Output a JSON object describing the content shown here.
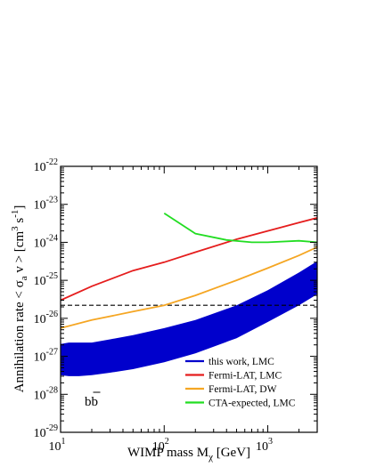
{
  "chart_data": {
    "type": "line",
    "xlabel": "WIMP mass M",
    "xlabel_sub": "χ",
    "xlabel_unit": " [GeV]",
    "ylabel": "Annihilation rate  < σ",
    "ylabel_sub": "a",
    "ylabel_mid": " v > [cm",
    "ylabel_sup3": "3",
    "ylabel_s": " s",
    "ylabel_supneg": "-1",
    "ylabel_end": "]",
    "x_scale": "log",
    "y_scale": "log",
    "xlim": [
      10,
      3000
    ],
    "ylim": [
      1e-29,
      1e-22
    ],
    "x_ticks": [
      {
        "value": 10,
        "base": "10",
        "exp": "1"
      },
      {
        "value": 100,
        "base": "10",
        "exp": "2"
      },
      {
        "value": 1000,
        "base": "10",
        "exp": "3"
      }
    ],
    "y_ticks": [
      {
        "value": 1e-29,
        "base": "10",
        "exp": "-29"
      },
      {
        "value": 1e-28,
        "base": "10",
        "exp": "-28"
      },
      {
        "value": 1e-27,
        "base": "10",
        "exp": "-27"
      },
      {
        "value": 1e-26,
        "base": "10",
        "exp": "-26"
      },
      {
        "value": 1e-25,
        "base": "10",
        "exp": "-25"
      },
      {
        "value": 1e-24,
        "base": "10",
        "exp": "-24"
      },
      {
        "value": 1e-23,
        "base": "10",
        "exp": "-23"
      },
      {
        "value": 1e-22,
        "base": "10",
        "exp": "-22"
      }
    ],
    "annotation": "bb",
    "grid": false,
    "legend_position": "bottom-right",
    "band": {
      "name": "this work, LMC",
      "color": "#0000cc",
      "x": [
        10,
        12,
        15,
        20,
        30,
        50,
        100,
        200,
        500,
        1000,
        2000,
        3000
      ],
      "upper": [
        2.1e-27,
        2.3e-27,
        2.3e-27,
        2.3e-27,
        2.8e-27,
        3.6e-27,
        5.5e-27,
        9e-27,
        2.2e-26,
        5.5e-26,
        1.6e-25,
        3.2e-25
      ],
      "lower": [
        3.2e-28,
        3e-28,
        3e-28,
        3.2e-28,
        3.7e-28,
        4.6e-28,
        7e-28,
        1.2e-27,
        3e-27,
        8e-27,
        2.2e-26,
        4.3e-26
      ]
    },
    "series": [
      {
        "name": "Fermi-LAT, LMC",
        "color": "#e51d1d",
        "x": [
          10,
          20,
          50,
          100,
          200,
          500,
          1000,
          2000,
          3000
        ],
        "y": [
          3e-26,
          7e-26,
          1.8e-25,
          3e-25,
          5.5e-25,
          1.2e-24,
          2e-24,
          3.3e-24,
          4.4e-24
        ]
      },
      {
        "name": "Fermi-LAT, DW",
        "color": "#f5a623",
        "x": [
          10,
          20,
          50,
          100,
          200,
          500,
          1000,
          2000,
          3000
        ],
        "y": [
          5.5e-27,
          9e-27,
          1.5e-26,
          2.2e-26,
          4e-26,
          1e-25,
          2.1e-25,
          4.5e-25,
          7.5e-25
        ]
      },
      {
        "name": "CTA-expected, LMC",
        "color": "#22dd22",
        "x": [
          100,
          200,
          400,
          700,
          1000,
          2000,
          3000
        ],
        "y": [
          5.8e-24,
          1.7e-24,
          1.15e-24,
          1e-24,
          1e-24,
          1.1e-24,
          1e-24
        ]
      }
    ],
    "reference_line": {
      "style": "dashed",
      "color": "#000000",
      "y": 2.2e-26
    }
  }
}
